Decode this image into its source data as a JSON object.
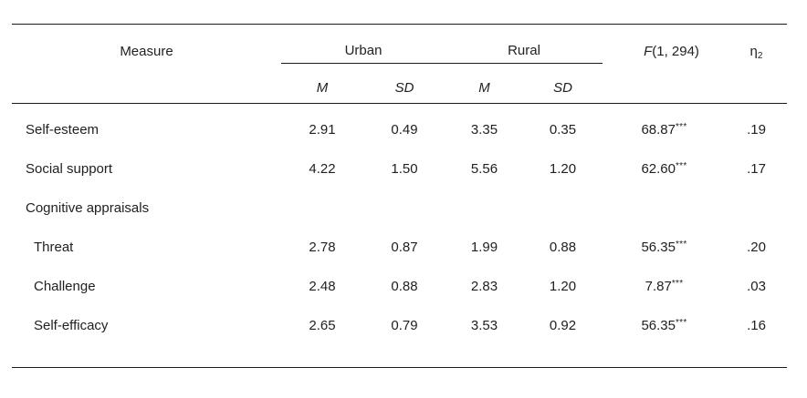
{
  "table": {
    "headers": {
      "measure": "Measure",
      "urban": "Urban",
      "rural": "Rural",
      "f_stat": "F",
      "f_df": "(1, 294)",
      "eta": "η",
      "eta_sup": "2",
      "urban_m": "M",
      "urban_sd": "SD",
      "rural_m": "M",
      "rural_sd": "SD"
    },
    "rows": [
      {
        "label": "Self-esteem",
        "urban_m": "2.91",
        "urban_sd": "0.49",
        "rural_m": "3.35",
        "rural_sd": "0.35",
        "f": "68.87",
        "sig": "***",
        "eta": ".19"
      },
      {
        "label": "Social support",
        "urban_m": "4.22",
        "urban_sd": "1.50",
        "rural_m": "5.56",
        "rural_sd": "1.20",
        "f": "62.60",
        "sig": "***",
        "eta": ".17"
      },
      {
        "label": "Cognitive appraisals",
        "urban_m": "",
        "urban_sd": "",
        "rural_m": "",
        "rural_sd": "",
        "f": "",
        "sig": "",
        "eta": ""
      },
      {
        "label": "Threat",
        "urban_m": "2.78",
        "urban_sd": "0.87",
        "rural_m": "1.99",
        "rural_sd": "0.88",
        "f": "56.35",
        "sig": "***",
        "eta": ".20"
      },
      {
        "label": "Challenge",
        "urban_m": "2.48",
        "urban_sd": "0.88",
        "rural_m": "2.83",
        "rural_sd": "1.20",
        "f": "7.87",
        "sig": "***",
        "eta": ".03"
      },
      {
        "label": "Self-efficacy",
        "urban_m": "2.65",
        "urban_sd": "0.79",
        "rural_m": "3.53",
        "rural_sd": "0.92",
        "f": "56.35",
        "sig": "***",
        "eta": ".16"
      }
    ],
    "colors": {
      "text": "#212121",
      "rule": "#1a1a1a",
      "background": "#ffffff"
    }
  }
}
